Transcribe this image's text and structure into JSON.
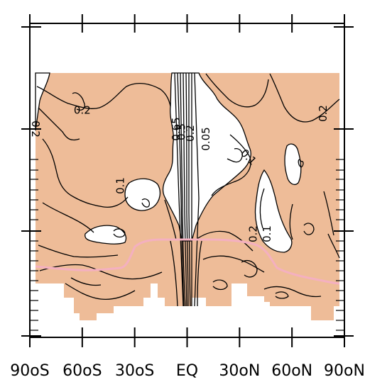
{
  "chart_data": {
    "type": "contour",
    "x_axis": {
      "range": [
        -90,
        90
      ],
      "ticks": [
        {
          "value": -90,
          "label": "90oS"
        },
        {
          "value": -60,
          "label": "60oS"
        },
        {
          "value": -30,
          "label": "30oS"
        },
        {
          "value": 0,
          "label": "EQ"
        },
        {
          "value": 30,
          "label": "30oN"
        },
        {
          "value": 60,
          "label": "60oN"
        },
        {
          "value": 90,
          "label": "90oN"
        }
      ]
    },
    "contour_labels": [
      {
        "text": "0.2",
        "lat": -60,
        "level": "upper",
        "rotate": 0
      },
      {
        "text": "0.2",
        "lat": -87,
        "level": "upper",
        "rotate": 90
      },
      {
        "text": "0.2",
        "lat": 78,
        "level": "upper",
        "rotate": -90
      },
      {
        "text": "0.1",
        "lat": -38,
        "level": "mid",
        "rotate": -90
      },
      {
        "text": "0.1",
        "lat": 35,
        "level": "mid",
        "rotate": 45
      },
      {
        "text": "0.05",
        "lat": 11,
        "level": "upper",
        "rotate": -90
      },
      {
        "text": "0.65",
        "lat": -6,
        "level": "upper",
        "rotate": -90
      },
      {
        "text": "0.5",
        "lat": -3,
        "level": "upper",
        "rotate": -90
      },
      {
        "text": "0.2",
        "lat": 2,
        "level": "upper",
        "rotate": -90
      },
      {
        "text": "0.2",
        "lat": 38,
        "level": "lower",
        "rotate": -90
      },
      {
        "text": "0.1",
        "lat": 46,
        "level": "lower",
        "rotate": -90
      }
    ],
    "shading": {
      "fill_color": "#eebc98",
      "threshold": "0.1"
    },
    "overlay_line": {
      "color": "#f4b0c0"
    },
    "line_color": "#000000"
  }
}
